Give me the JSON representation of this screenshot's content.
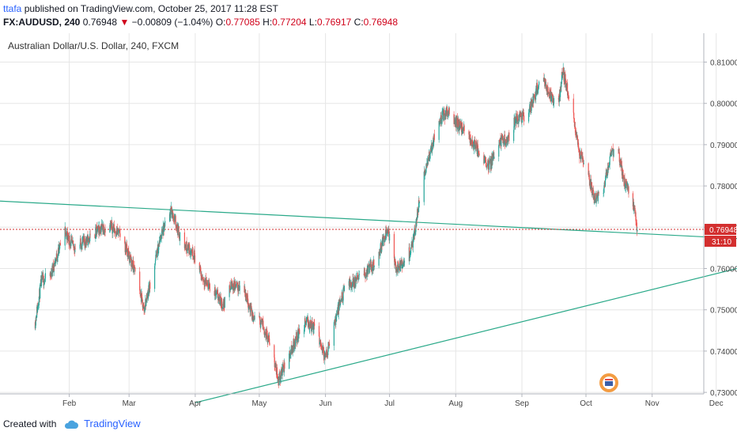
{
  "header": {
    "user": "ttafa",
    "published_text": "published on TradingView.com, October 25, 2017 11:28 EST",
    "symbol": "FX:AUDUSD, 240",
    "last": "0.76948",
    "change": "−0.00809 (−1.04%)",
    "open_label": "O:",
    "open": "0.77085",
    "high_label": "H:",
    "high": "0.77204",
    "low_label": "L:",
    "low": "0.76917",
    "close_label": "C:",
    "close": "0.76948"
  },
  "chart_title": "Australian Dollar/U.S. Dollar, 240, FXCM",
  "footer": {
    "created_with": "Created with",
    "brand": "TradingView"
  },
  "colors": {
    "up": "#26a69a",
    "down": "#ef5350",
    "trendline": "#2aa989",
    "price_line": "#d32f2f",
    "grid": "#e6e6e6"
  },
  "chart_data": {
    "type": "line",
    "chart_style": "candlestick",
    "x_tick_labels": [
      "Feb",
      "Mar",
      "Apr",
      "May",
      "Jun",
      "Jul",
      "Aug",
      "Sep",
      "Oct",
      "Nov",
      "Dec"
    ],
    "y_tick_labels": [
      "0.81000",
      "0.80000",
      "0.79000",
      "0.78000",
      "0.77000",
      "0.76000",
      "0.75000",
      "0.74000",
      "0.73000"
    ],
    "ylim": [
      0.7275,
      0.8139
    ],
    "current_price": "0.76948",
    "countdown": "31:10",
    "price_path": [
      {
        "date": "2017-01-16",
        "value": 0.747
      },
      {
        "date": "2017-01-19",
        "value": 0.757
      },
      {
        "date": "2017-01-23",
        "value": 0.758
      },
      {
        "date": "2017-01-30",
        "value": 0.769
      },
      {
        "date": "2017-02-03",
        "value": 0.765
      },
      {
        "date": "2017-02-10",
        "value": 0.767
      },
      {
        "date": "2017-02-16",
        "value": 0.77
      },
      {
        "date": "2017-02-21",
        "value": 0.77
      },
      {
        "date": "2017-02-25",
        "value": 0.768
      },
      {
        "date": "2017-03-01",
        "value": 0.763
      },
      {
        "date": "2017-03-04",
        "value": 0.759
      },
      {
        "date": "2017-03-08",
        "value": 0.75
      },
      {
        "date": "2017-03-12",
        "value": 0.759
      },
      {
        "date": "2017-03-16",
        "value": 0.768
      },
      {
        "date": "2017-03-21",
        "value": 0.774
      },
      {
        "date": "2017-03-26",
        "value": 0.766
      },
      {
        "date": "2017-03-31",
        "value": 0.764
      },
      {
        "date": "2017-04-04",
        "value": 0.758
      },
      {
        "date": "2017-04-09",
        "value": 0.755
      },
      {
        "date": "2017-04-14",
        "value": 0.751
      },
      {
        "date": "2017-04-18",
        "value": 0.756
      },
      {
        "date": "2017-04-24",
        "value": 0.755
      },
      {
        "date": "2017-04-28",
        "value": 0.748
      },
      {
        "date": "2017-05-02",
        "value": 0.747
      },
      {
        "date": "2017-05-06",
        "value": 0.742
      },
      {
        "date": "2017-05-10",
        "value": 0.733
      },
      {
        "date": "2017-05-15",
        "value": 0.739
      },
      {
        "date": "2017-05-19",
        "value": 0.744
      },
      {
        "date": "2017-05-23",
        "value": 0.747
      },
      {
        "date": "2017-05-28",
        "value": 0.745
      },
      {
        "date": "2017-06-01",
        "value": 0.738
      },
      {
        "date": "2017-06-04",
        "value": 0.745
      },
      {
        "date": "2017-06-10",
        "value": 0.755
      },
      {
        "date": "2017-06-15",
        "value": 0.757
      },
      {
        "date": "2017-06-20",
        "value": 0.759
      },
      {
        "date": "2017-06-25",
        "value": 0.762
      },
      {
        "date": "2017-06-30",
        "value": 0.77
      },
      {
        "date": "2017-07-04",
        "value": 0.76
      },
      {
        "date": "2017-07-08",
        "value": 0.761
      },
      {
        "date": "2017-07-12",
        "value": 0.766
      },
      {
        "date": "2017-07-16",
        "value": 0.78
      },
      {
        "date": "2017-07-20",
        "value": 0.788
      },
      {
        "date": "2017-07-24",
        "value": 0.796
      },
      {
        "date": "2017-07-28",
        "value": 0.798
      },
      {
        "date": "2017-08-02",
        "value": 0.795
      },
      {
        "date": "2017-08-07",
        "value": 0.792
      },
      {
        "date": "2017-08-12",
        "value": 0.788
      },
      {
        "date": "2017-08-17",
        "value": 0.785
      },
      {
        "date": "2017-08-21",
        "value": 0.791
      },
      {
        "date": "2017-08-25",
        "value": 0.791
      },
      {
        "date": "2017-08-29",
        "value": 0.796
      },
      {
        "date": "2017-09-02",
        "value": 0.797
      },
      {
        "date": "2017-09-06",
        "value": 0.8
      },
      {
        "date": "2017-09-10",
        "value": 0.807
      },
      {
        "date": "2017-09-14",
        "value": 0.802
      },
      {
        "date": "2017-09-18",
        "value": 0.799
      },
      {
        "date": "2017-09-20",
        "value": 0.808
      },
      {
        "date": "2017-09-24",
        "value": 0.8
      },
      {
        "date": "2017-09-28",
        "value": 0.788
      },
      {
        "date": "2017-10-01",
        "value": 0.784
      },
      {
        "date": "2017-10-05",
        "value": 0.777
      },
      {
        "date": "2017-10-09",
        "value": 0.779
      },
      {
        "date": "2017-10-13",
        "value": 0.788
      },
      {
        "date": "2017-10-16",
        "value": 0.788
      },
      {
        "date": "2017-10-19",
        "value": 0.781
      },
      {
        "date": "2017-10-22",
        "value": 0.779
      },
      {
        "date": "2017-10-25",
        "value": 0.7695
      }
    ],
    "trendlines": [
      {
        "start": {
          "date": "2016-12-28",
          "value": 0.7764
        },
        "end": {
          "date": "2017-12-17",
          "value": 0.7671
        }
      },
      {
        "start": {
          "date": "2017-04-01",
          "value": 0.7275
        },
        "end": {
          "date": "2017-12-17",
          "value": 0.7608
        }
      }
    ]
  }
}
